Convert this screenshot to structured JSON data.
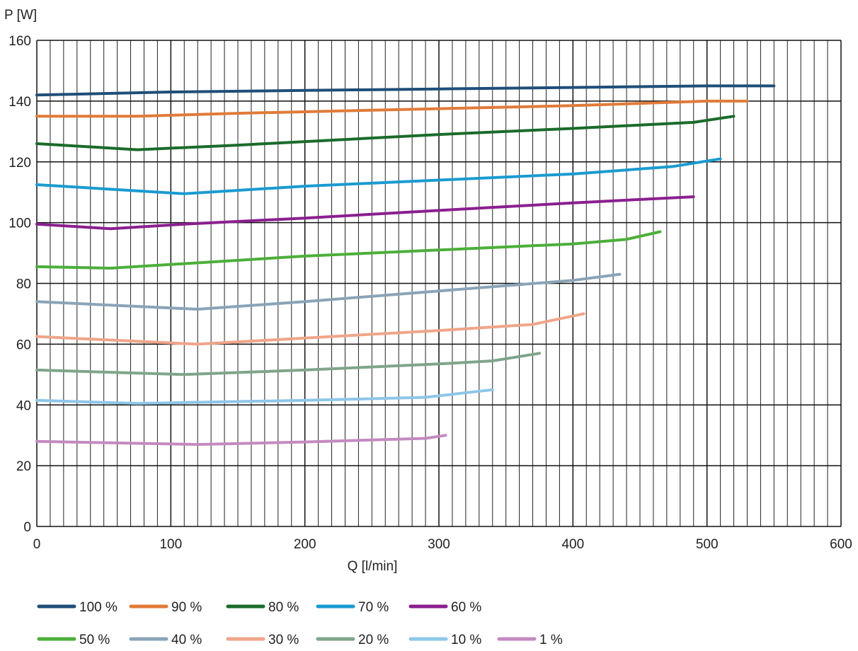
{
  "chart_data": {
    "type": "line",
    "xlabel": "Q [l/min]",
    "ylabel": "P [W]",
    "xlim": [
      0,
      600
    ],
    "ylim": [
      0,
      160
    ],
    "x_major_ticks": [
      0,
      100,
      200,
      300,
      400,
      500,
      600
    ],
    "y_major_ticks": [
      0,
      20,
      40,
      60,
      80,
      100,
      120,
      140,
      160
    ],
    "x_minor_step": 10,
    "grid": true,
    "legend_position": "bottom",
    "series": [
      {
        "name": "100 %",
        "color": "#1f4e79",
        "points": [
          [
            0,
            142
          ],
          [
            100,
            143
          ],
          [
            200,
            143.5
          ],
          [
            300,
            144
          ],
          [
            400,
            144.5
          ],
          [
            500,
            145
          ],
          [
            550,
            145
          ]
        ]
      },
      {
        "name": "90 %",
        "color": "#e07b39",
        "points": [
          [
            0,
            135
          ],
          [
            75,
            135
          ],
          [
            150,
            136
          ],
          [
            300,
            137.5
          ],
          [
            400,
            138.5
          ],
          [
            500,
            140
          ],
          [
            530,
            140
          ]
        ]
      },
      {
        "name": "80 %",
        "color": "#1a6b2a",
        "points": [
          [
            0,
            126
          ],
          [
            75,
            124
          ],
          [
            150,
            125.5
          ],
          [
            300,
            129
          ],
          [
            400,
            131
          ],
          [
            490,
            133
          ],
          [
            520,
            135
          ]
        ]
      },
      {
        "name": "70 %",
        "color": "#1a9bd1",
        "points": [
          [
            0,
            112.5
          ],
          [
            110,
            109.5
          ],
          [
            200,
            112
          ],
          [
            300,
            114
          ],
          [
            400,
            116
          ],
          [
            475,
            118.5
          ],
          [
            510,
            121
          ]
        ]
      },
      {
        "name": "60 %",
        "color": "#8b1f8f",
        "points": [
          [
            0,
            99.5
          ],
          [
            55,
            98
          ],
          [
            110,
            99.5
          ],
          [
            200,
            101.5
          ],
          [
            300,
            104
          ],
          [
            400,
            106.5
          ],
          [
            490,
            108.5
          ]
        ]
      },
      {
        "name": "50 %",
        "color": "#4caf3a",
        "points": [
          [
            0,
            85.5
          ],
          [
            55,
            85
          ],
          [
            110,
            86.5
          ],
          [
            200,
            89
          ],
          [
            300,
            91
          ],
          [
            400,
            93
          ],
          [
            440,
            94.5
          ],
          [
            465,
            97
          ]
        ]
      },
      {
        "name": "40 %",
        "color": "#8aa4b8",
        "points": [
          [
            0,
            74
          ],
          [
            120,
            71.5
          ],
          [
            200,
            74
          ],
          [
            300,
            77.5
          ],
          [
            400,
            81
          ],
          [
            435,
            83
          ]
        ]
      },
      {
        "name": "30 %",
        "color": "#f0a58a",
        "points": [
          [
            0,
            62.5
          ],
          [
            120,
            60
          ],
          [
            200,
            62
          ],
          [
            300,
            64.5
          ],
          [
            370,
            66.5
          ],
          [
            408,
            70
          ]
        ]
      },
      {
        "name": "20 %",
        "color": "#7fa58a",
        "points": [
          [
            0,
            51.5
          ],
          [
            110,
            50
          ],
          [
            200,
            51.5
          ],
          [
            300,
            53.5
          ],
          [
            340,
            54.5
          ],
          [
            375,
            57
          ]
        ]
      },
      {
        "name": "10 %",
        "color": "#8ec6e8",
        "points": [
          [
            0,
            41.5
          ],
          [
            75,
            40.5
          ],
          [
            200,
            41.5
          ],
          [
            290,
            42.5
          ],
          [
            340,
            45
          ]
        ]
      },
      {
        "name": "1 %",
        "color": "#c48ac0",
        "points": [
          [
            0,
            28
          ],
          [
            120,
            27
          ],
          [
            200,
            27.8
          ],
          [
            290,
            29
          ],
          [
            305,
            30
          ]
        ]
      }
    ]
  }
}
